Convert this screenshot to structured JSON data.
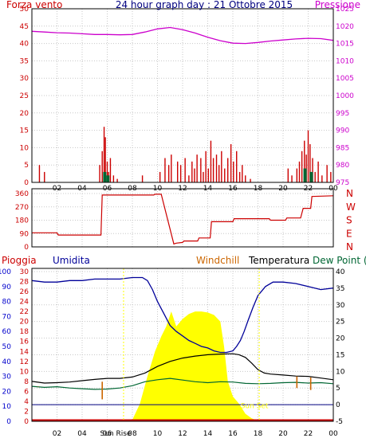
{
  "colors": {
    "wind": "#cc0000",
    "pressure": "#cc00cc",
    "title": "#000080",
    "humidity": "#000099",
    "rain": "#cc0000",
    "windchill": "#cc6600",
    "temperature": "#000000",
    "dewpoint": "#006633",
    "sun": "#ffff00",
    "frame": "#000000",
    "axis_left_blue": "#0000cc",
    "axis_left_red": "#cc0000"
  },
  "chart_data": [
    {
      "type": "line",
      "title": "24 hour graph day : 21 Ottobre 2015",
      "left_label": "Forza vento",
      "right_label": "Pressione",
      "x_ticks": [
        "02",
        "04",
        "06",
        "08",
        "10",
        "12",
        "14",
        "16",
        "18",
        "20",
        "22",
        "00"
      ],
      "x_range": [
        0,
        24
      ],
      "left_ticks": [
        "0",
        "5",
        "10",
        "15",
        "20",
        "25",
        "30",
        "35",
        "40",
        "45",
        "50"
      ],
      "left_range": [
        0,
        50
      ],
      "right_ticks": [
        "975",
        "980",
        "985",
        "990",
        "995",
        "1000",
        "1005",
        "1010",
        "1015",
        "1020",
        "1025"
      ],
      "right_range": [
        975,
        1025
      ],
      "series": [
        {
          "kind": "pressure",
          "x": [
            0,
            1,
            2,
            3,
            4,
            5,
            6,
            7,
            8,
            9,
            10,
            11,
            12,
            13,
            14,
            15,
            16,
            17,
            18,
            19,
            20,
            21,
            22,
            23,
            24
          ],
          "values": [
            1018.5,
            1018.3,
            1018.1,
            1018.0,
            1017.8,
            1017.6,
            1017.6,
            1017.5,
            1017.6,
            1018.3,
            1019.2,
            1019.6,
            1019.0,
            1018.0,
            1016.8,
            1015.8,
            1015.1,
            1015.0,
            1015.3,
            1015.7,
            1016.0,
            1016.3,
            1016.5,
            1016.4,
            1015.9
          ]
        },
        {
          "kind": "wind",
          "x": [
            0.6,
            1.0,
            5.4,
            5.6,
            5.75,
            5.85,
            6.0,
            6.1,
            6.25,
            6.5,
            6.8,
            8.8,
            10.2,
            10.6,
            10.9,
            11.1,
            11.6,
            11.85,
            12.2,
            12.5,
            12.75,
            12.95,
            13.15,
            13.45,
            13.65,
            13.85,
            14.05,
            14.25,
            14.45,
            14.7,
            14.9,
            15.1,
            15.35,
            15.6,
            15.85,
            16.05,
            16.3,
            16.55,
            16.75,
            17.0,
            17.4,
            20.4,
            20.7,
            21.1,
            21.3,
            21.5,
            21.7,
            21.85,
            22.0,
            22.15,
            22.35,
            22.55,
            22.8,
            23.1,
            23.5,
            23.8
          ],
          "values": [
            5,
            3,
            5,
            9,
            16,
            13,
            6,
            3,
            7,
            2,
            1,
            2,
            3,
            7,
            5,
            8,
            6,
            5,
            7,
            2,
            6,
            4,
            8,
            7,
            3,
            9,
            4,
            12,
            7,
            8,
            5,
            9,
            4,
            7,
            11,
            6,
            9,
            3,
            5,
            2,
            1,
            4,
            2,
            4,
            6,
            9,
            12,
            8,
            15,
            11,
            7,
            3,
            6,
            2,
            5,
            3
          ],
          "gust_blocks_x": [
            5.8,
            6.05,
            21.75,
            22.25
          ],
          "gust_blocks_values": [
            3,
            2,
            4,
            3
          ]
        }
      ]
    },
    {
      "type": "line",
      "series_name": "direction",
      "x_ticks": [
        "02",
        "04",
        "06",
        "08",
        "10",
        "12",
        "14",
        "16",
        "18",
        "20",
        "22",
        "00"
      ],
      "x_range": [
        0,
        24
      ],
      "left_ticks": [
        "0",
        "90",
        "180",
        "270",
        "360"
      ],
      "left_range": [
        0,
        360
      ],
      "right_labels": [
        "N",
        "W",
        "S",
        "E",
        "N"
      ],
      "x": [
        0,
        2.0,
        2.1,
        5.5,
        5.6,
        9.7,
        9.8,
        10.3,
        11.3,
        11.5,
        12.0,
        12.1,
        13.2,
        13.3,
        14.2,
        14.3,
        16.0,
        16.1,
        18.9,
        19.0,
        20.2,
        20.3,
        21.4,
        21.6,
        22.2,
        22.3,
        24
      ],
      "values": [
        95,
        95,
        80,
        80,
        350,
        350,
        355,
        355,
        20,
        25,
        30,
        40,
        40,
        60,
        60,
        170,
        170,
        190,
        190,
        180,
        180,
        195,
        195,
        260,
        260,
        340,
        345
      ]
    },
    {
      "type": "line",
      "labels": {
        "rain": "Pioggia",
        "humidity": "Umidita",
        "windchill": "Windchill",
        "temperature": "Temperatura",
        "dewpoint": "Dew Point (°C"
      },
      "annotations": {
        "sunrise": "Sun Rise",
        "sunset": "Sun Set"
      },
      "x_ticks": [
        "02",
        "04",
        "06",
        "08",
        "10",
        "12",
        "14",
        "16",
        "18",
        "20",
        "22",
        "00"
      ],
      "x_range": [
        0,
        24
      ],
      "humidity_ticks": [
        "0",
        "10",
        "20",
        "30",
        "40",
        "50",
        "60",
        "70",
        "80",
        "90",
        "100"
      ],
      "humidity_range": [
        0,
        100
      ],
      "rain_ticks": [
        "0",
        "2",
        "4",
        "6",
        "8",
        "10",
        "12",
        "14",
        "16",
        "18",
        "20",
        "22",
        "24",
        "26",
        "28",
        "30"
      ],
      "rain_range": [
        0,
        30
      ],
      "temp_ticks": [
        "-5",
        "0",
        "5",
        "10",
        "15",
        "20",
        "25",
        "30",
        "35",
        "40"
      ],
      "temp_range": [
        -5,
        40
      ],
      "sunrise_hour": 7.3,
      "sunset_hour": 18.1,
      "series": [
        {
          "kind": "humidity",
          "x": [
            0,
            1,
            2,
            3,
            4,
            5,
            6,
            7,
            8,
            8.8,
            9.2,
            9.6,
            10.0,
            10.5,
            11.0,
            11.5,
            12.0,
            12.5,
            13.0,
            13.5,
            14.0,
            14.5,
            15.0,
            15.5,
            16.0,
            16.3,
            16.6,
            16.9,
            17.2,
            17.6,
            18.0,
            18.6,
            19.2,
            20.0,
            21.0,
            22.0,
            23.0,
            24
          ],
          "values": [
            94,
            93,
            93,
            94,
            94,
            95,
            95,
            95,
            96,
            96,
            94,
            88,
            80,
            72,
            64,
            60,
            57,
            54,
            52,
            50,
            49,
            47,
            46,
            46,
            47,
            50,
            54,
            60,
            67,
            76,
            84,
            90,
            93,
            93,
            92,
            90,
            88,
            89
          ]
        },
        {
          "kind": "temperature",
          "x": [
            0,
            1,
            2,
            3,
            4,
            5,
            6,
            7,
            8,
            9,
            10,
            11,
            12,
            13,
            14,
            15,
            16,
            16.5,
            17,
            17.5,
            18,
            18.5,
            19,
            20,
            21,
            22,
            23,
            24
          ],
          "values": [
            7.0,
            6.5,
            6.6,
            6.8,
            7.2,
            7.6,
            7.9,
            7.9,
            8.3,
            9.5,
            11.5,
            13.0,
            14.0,
            14.6,
            15.0,
            15.2,
            15.3,
            15.0,
            14.2,
            12.5,
            10.5,
            9.5,
            9.2,
            8.9,
            8.6,
            8.5,
            8.0,
            7.5
          ]
        },
        {
          "kind": "dewpoint",
          "x": [
            0,
            1,
            2,
            3,
            4,
            5,
            6,
            7,
            8,
            9,
            10,
            11,
            12,
            13,
            14,
            15,
            16,
            17,
            18,
            19,
            20,
            21,
            22,
            23,
            24
          ],
          "values": [
            5.5,
            5.2,
            5.4,
            5.0,
            4.8,
            4.6,
            4.7,
            5.0,
            5.7,
            6.9,
            7.5,
            7.9,
            7.4,
            6.9,
            6.6,
            6.9,
            6.8,
            6.4,
            6.3,
            6.4,
            6.6,
            6.7,
            6.5,
            6.6,
            6.3
          ]
        },
        {
          "kind": "windchill_dips",
          "x": [
            0.5,
            5.6,
            21.1,
            22.2
          ],
          "values": [
            5.4,
            1.6,
            5.0,
            4.4
          ]
        },
        {
          "kind": "rain",
          "x": [
            0,
            24
          ],
          "values": [
            0,
            0
          ]
        },
        {
          "kind": "solar",
          "x": [
            7.3,
            8.0,
            8.6,
            9.2,
            9.8,
            10.3,
            10.7,
            11.1,
            11.5,
            12.0,
            12.5,
            13.0,
            13.5,
            14.0,
            14.5,
            15.0,
            15.3,
            15.6,
            16.0,
            16.5,
            17.0,
            17.5,
            18.1
          ],
          "values": [
            0,
            0.3,
            3.5,
            9,
            14,
            17,
            19,
            22,
            19,
            20.5,
            21.5,
            22,
            22,
            21.8,
            21.3,
            20,
            15,
            8,
            5,
            3.5,
            1.5,
            0.6,
            0
          ]
        }
      ]
    }
  ]
}
